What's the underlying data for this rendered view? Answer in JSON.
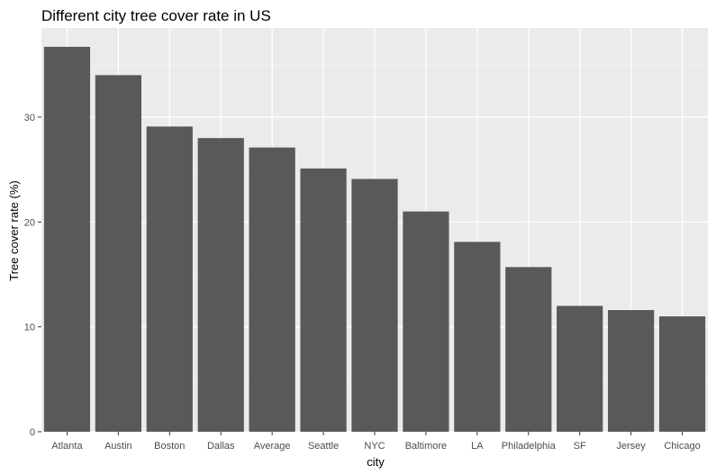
{
  "chart_data": {
    "type": "bar",
    "title": "Different city tree cover rate in US",
    "xlabel": "city",
    "ylabel": "Tree cover rate (%)",
    "categories": [
      "Atlanta",
      "Austin",
      "Boston",
      "Dallas",
      "Average",
      "Seattle",
      "NYC",
      "Baltimore",
      "LA",
      "Philadelphia",
      "SF",
      "Jersey",
      "Chicago"
    ],
    "values": [
      36.7,
      34.0,
      29.1,
      28.0,
      27.1,
      25.1,
      24.1,
      21.0,
      18.1,
      15.7,
      12.0,
      11.6,
      11.0
    ],
    "ylim": [
      0,
      38.5
    ],
    "yticks": [
      0,
      10,
      20,
      30
    ],
    "grid": true,
    "legend": "none",
    "colors": {
      "panel_background": "#ebebeb",
      "grid_major": "#ffffff",
      "grid_minor": "#f5f5f5",
      "bar_fill": "#595959",
      "tick_label": "#4d4d4d",
      "text": "#000000"
    }
  }
}
